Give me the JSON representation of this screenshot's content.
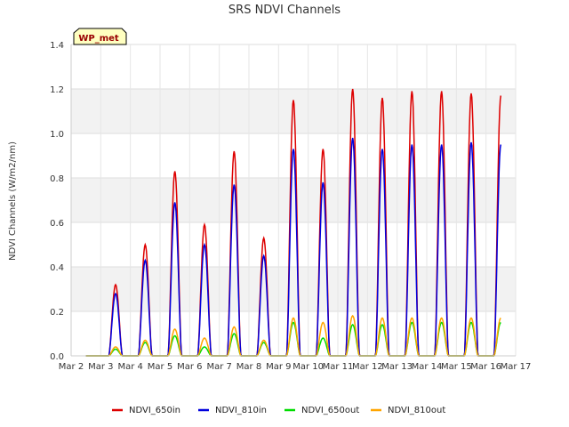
{
  "chart_data": {
    "type": "line",
    "title": "SRS NDVI Channels",
    "xlabel": "",
    "ylabel": "NDVI Channels (W/m2/nm)",
    "badge": "WP_met",
    "xlim": [
      2,
      17
    ],
    "ylim": [
      0.0,
      1.4
    ],
    "x_ticks": [
      2,
      3,
      4,
      5,
      6,
      7,
      8,
      9,
      10,
      11,
      12,
      13,
      14,
      15,
      16,
      17
    ],
    "x_tick_labels": [
      "Mar 2",
      "Mar 3",
      "Mar 4",
      "Mar 5",
      "Mar 6",
      "Mar 7",
      "Mar 8",
      "Mar 9",
      "Mar 10",
      "Mar 11",
      "Mar 12",
      "Mar 13",
      "Mar 14",
      "Mar 15",
      "Mar 16",
      "Mar 17"
    ],
    "y_ticks": [
      0.0,
      0.2,
      0.4,
      0.6,
      0.8,
      1.0,
      1.2,
      1.4
    ],
    "y_tick_labels": [
      "0.0",
      "0.2",
      "0.4",
      "0.6",
      "0.8",
      "1.0",
      "1.2",
      "1.4"
    ],
    "grid": true,
    "legend_position": "bottom",
    "day_start": 2.5,
    "day_end": 16.5,
    "series": [
      {
        "name": "NDVI_650in",
        "color": "#dd0000",
        "daily_peaks": [
          0.32,
          0.5,
          0.83,
          0.59,
          0.92,
          0.53,
          1.15,
          0.93,
          1.2,
          1.16,
          1.19,
          1.19,
          1.18,
          1.17
        ]
      },
      {
        "name": "NDVI_810in",
        "color": "#0000dd",
        "daily_peaks": [
          0.28,
          0.43,
          0.69,
          0.5,
          0.77,
          0.45,
          0.93,
          0.78,
          0.98,
          0.93,
          0.95,
          0.95,
          0.96,
          0.95
        ]
      },
      {
        "name": "NDVI_650out",
        "color": "#00dd00",
        "daily_peaks": [
          0.03,
          0.06,
          0.09,
          0.04,
          0.1,
          0.06,
          0.15,
          0.08,
          0.14,
          0.14,
          0.15,
          0.15,
          0.15,
          0.15
        ]
      },
      {
        "name": "NDVI_810out",
        "color": "#ffa500",
        "daily_peaks": [
          0.04,
          0.07,
          0.12,
          0.08,
          0.13,
          0.07,
          0.17,
          0.15,
          0.18,
          0.17,
          0.17,
          0.17,
          0.17,
          0.17
        ]
      }
    ]
  }
}
